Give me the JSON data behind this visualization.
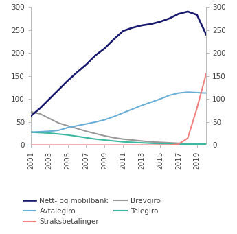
{
  "years": [
    2001,
    2002,
    2003,
    2004,
    2005,
    2006,
    2007,
    2008,
    2009,
    2010,
    2011,
    2012,
    2013,
    2014,
    2015,
    2016,
    2017,
    2018,
    2019,
    2020
  ],
  "nett_og_mobilbank": [
    63,
    80,
    100,
    120,
    140,
    158,
    175,
    195,
    210,
    230,
    248,
    255,
    260,
    263,
    268,
    275,
    285,
    290,
    283,
    240
  ],
  "avtalegiro": [
    28,
    29,
    30,
    32,
    38,
    42,
    46,
    50,
    55,
    62,
    70,
    78,
    86,
    93,
    100,
    108,
    113,
    115,
    114,
    113
  ],
  "straksbetalinger": [
    0,
    0,
    0,
    0,
    0,
    0,
    0,
    0,
    0,
    0,
    0,
    0,
    0,
    0,
    0,
    0,
    2,
    15,
    80,
    155
  ],
  "brevgiro": [
    72,
    68,
    58,
    48,
    42,
    36,
    30,
    25,
    20,
    16,
    13,
    11,
    9,
    7,
    6,
    5,
    4,
    3,
    3,
    2
  ],
  "telegiro": [
    28,
    27,
    26,
    24,
    22,
    19,
    16,
    13,
    11,
    9,
    7,
    6,
    5,
    4,
    3,
    3,
    2,
    2,
    2,
    2
  ],
  "colors": {
    "nett_og_mobilbank": "#1a1a6e",
    "avtalegiro": "#6baed6",
    "straksbetalinger": "#f08080",
    "brevgiro": "#999999",
    "telegiro": "#3cb8a0"
  },
  "ylim": [
    0,
    300
  ],
  "yticks": [
    0,
    50,
    100,
    150,
    200,
    250,
    300
  ],
  "xticks": [
    2001,
    2003,
    2005,
    2007,
    2009,
    2011,
    2013,
    2015,
    2017,
    2019
  ],
  "xlim": [
    2001,
    2020
  ],
  "legend_col1": [
    "nett_og_mobilbank",
    "straksbetalinger",
    "telegiro"
  ],
  "legend_col2": [
    "avtalegiro",
    "brevgiro"
  ],
  "legend_labels": {
    "nett_og_mobilbank": "Nett- og mobilbank",
    "avtalegiro": "Avtalegiro",
    "straksbetalinger": "Straksbetalinger",
    "brevgiro": "Brevgiro",
    "telegiro": "Telegiro"
  },
  "linewidth": 1.5,
  "spine_color": "#bbbbbb",
  "tick_color": "#bbbbbb",
  "label_color": "#444444",
  "fontsize_ticks": 7.5,
  "fontsize_legend": 7.5
}
